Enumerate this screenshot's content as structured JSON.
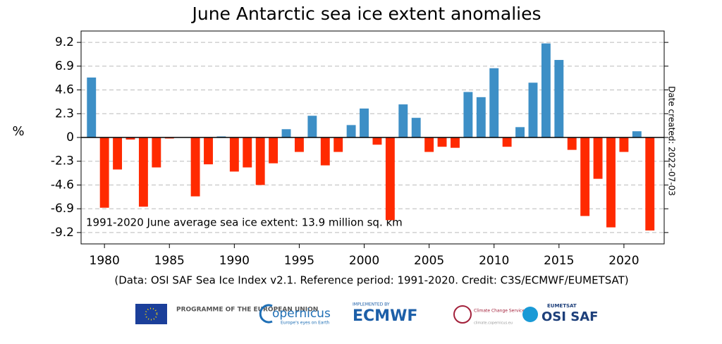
{
  "chart_data": {
    "type": "bar",
    "title": "June Antarctic sea ice extent anomalies",
    "y_label": "%",
    "annotation": "1991-2020 June average sea ice extent: 13.9 million sq. km",
    "side_note": "Date created: 2022-07-03",
    "caption": "(Data: OSI SAF Sea Ice Index v2.1.  Reference period: 1991-2020.  Credit: C3S/ECMWF/EUMETSAT)",
    "x": [
      1979,
      1980,
      1981,
      1982,
      1983,
      1984,
      1985,
      1986,
      1987,
      1988,
      1989,
      1990,
      1991,
      1992,
      1993,
      1994,
      1995,
      1996,
      1997,
      1998,
      1999,
      2000,
      2001,
      2002,
      2003,
      2004,
      2005,
      2006,
      2007,
      2008,
      2009,
      2010,
      2011,
      2012,
      2013,
      2014,
      2015,
      2016,
      2017,
      2018,
      2019,
      2020,
      2021,
      2022
    ],
    "values": [
      5.8,
      -6.8,
      -3.1,
      -0.2,
      -6.7,
      -2.9,
      -0.1,
      0,
      -5.7,
      -2.6,
      0.1,
      -3.3,
      -2.9,
      -4.6,
      -2.5,
      0.8,
      -1.4,
      2.1,
      -2.7,
      -1.4,
      1.2,
      2.8,
      -0.7,
      -8.0,
      3.2,
      1.9,
      -1.4,
      -0.9,
      -1.0,
      4.4,
      3.9,
      6.7,
      -0.9,
      1.0,
      5.3,
      9.1,
      7.5,
      -1.2,
      -7.6,
      -4.0,
      -8.7,
      -1.4,
      0.6,
      -9.0
    ],
    "positive_color": "#3d8fc6",
    "negative_color": "#ff2a00",
    "xlim": [
      1978.2,
      2023.1
    ],
    "xticks": [
      1980,
      1985,
      1990,
      1995,
      2000,
      2005,
      2010,
      2015,
      2020
    ],
    "ylim": [
      -10.3,
      10.3
    ],
    "yticks": [
      9.2,
      6.9,
      4.6,
      2.3,
      0,
      -2.3,
      -4.6,
      -6.9,
      -9.2
    ],
    "grid": true
  },
  "logos": {
    "eu": "PROGRAMME OF THE EUROPEAN UNION",
    "copernicus": "opernicus",
    "copernicus_tagline": "Europe's eyes on Earth",
    "ecmwf_top": "IMPLEMENTED BY",
    "ecmwf": "ECMWF",
    "c3s": "Climate Change Service",
    "c3s_url": "climate.copernicus.eu",
    "osisaf_top": "EUMETSAT",
    "osisaf": "OSI SAF"
  }
}
